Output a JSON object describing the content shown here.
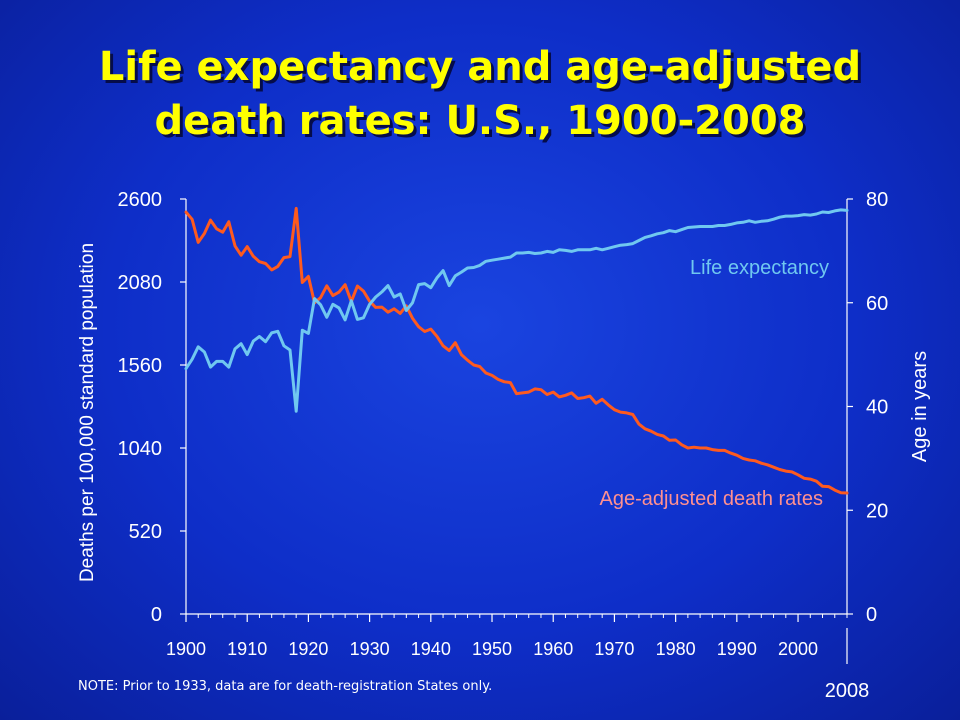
{
  "title": {
    "line1": "Life expectancy and age-adjusted",
    "line2": "death rates: U.S., 1900-2008"
  },
  "note": "NOTE: Prior to 1933, data are for death-registration States only.",
  "colors": {
    "background": "#1030d0",
    "title": "#ffff00",
    "death_rate_line": "#ff5a1e",
    "life_expectancy_line": "#70c8f0",
    "death_rate_label": "#ff9090",
    "life_expectancy_label": "#70c8f0",
    "axis": "#ffffff"
  },
  "chart_data": {
    "type": "line",
    "xlabel": "",
    "ylabel_left": "Deaths per 100,000 standard  population",
    "ylabel_right": "Age in years",
    "xlim": [
      1900,
      2008
    ],
    "ylim_left": [
      0,
      2600
    ],
    "ylim_right": [
      0,
      80
    ],
    "x_ticks": [
      "1900",
      "1910",
      "1920",
      "1930",
      "1940",
      "1950",
      "1960",
      "1970",
      "1980",
      "1990",
      "2000"
    ],
    "x_extra_label": "2008",
    "y_ticks_left": [
      "0",
      "520",
      "1040",
      "1560",
      "2080",
      "2600"
    ],
    "y_ticks_right": [
      "0",
      "20",
      "40",
      "60",
      "80"
    ],
    "grid": false,
    "series": [
      {
        "name": "Age-adjusted death rates",
        "axis": "left",
        "x": [
          1900,
          1901,
          1902,
          1903,
          1904,
          1905,
          1906,
          1907,
          1908,
          1909,
          1910,
          1911,
          1912,
          1913,
          1914,
          1915,
          1916,
          1917,
          1918,
          1919,
          1920,
          1921,
          1922,
          1923,
          1924,
          1925,
          1926,
          1927,
          1928,
          1929,
          1930,
          1931,
          1932,
          1933,
          1934,
          1935,
          1936,
          1937,
          1938,
          1939,
          1940,
          1941,
          1942,
          1943,
          1944,
          1945,
          1946,
          1947,
          1948,
          1949,
          1950,
          1951,
          1952,
          1953,
          1954,
          1955,
          1956,
          1957,
          1958,
          1959,
          1960,
          1961,
          1962,
          1963,
          1964,
          1965,
          1966,
          1967,
          1968,
          1969,
          1970,
          1971,
          1972,
          1973,
          1974,
          1975,
          1976,
          1977,
          1978,
          1979,
          1980,
          1981,
          1982,
          1983,
          1984,
          1985,
          1986,
          1987,
          1988,
          1989,
          1990,
          1991,
          1992,
          1993,
          1994,
          1995,
          1996,
          1997,
          1998,
          1999,
          2000,
          2001,
          2002,
          2003,
          2004,
          2005,
          2006,
          2007,
          2008
        ],
        "values": [
          2518,
          2473,
          2328,
          2384,
          2468,
          2413,
          2392,
          2458,
          2306,
          2248,
          2302,
          2241,
          2207,
          2196,
          2156,
          2178,
          2233,
          2239,
          2541,
          2077,
          2115,
          1950,
          1982,
          2056,
          1995,
          2017,
          2063,
          1957,
          2055,
          2023,
          1960,
          1921,
          1923,
          1891,
          1912,
          1883,
          1930,
          1853,
          1800,
          1770,
          1785,
          1740,
          1680,
          1650,
          1700,
          1625,
          1590,
          1560,
          1550,
          1510,
          1495,
          1470,
          1455,
          1450,
          1380,
          1385,
          1390,
          1410,
          1405,
          1375,
          1390,
          1360,
          1370,
          1385,
          1350,
          1355,
          1365,
          1320,
          1345,
          1310,
          1280,
          1265,
          1260,
          1250,
          1190,
          1160,
          1145,
          1125,
          1115,
          1088,
          1090,
          1060,
          1040,
          1045,
          1040,
          1040,
          1030,
          1025,
          1025,
          1008,
          995,
          975,
          965,
          960,
          945,
          935,
          920,
          905,
          895,
          890,
          872,
          850,
          845,
          832,
          800,
          798,
          776,
          760,
          758
        ]
      },
      {
        "name": "Life expectancy",
        "axis": "right",
        "x": [
          1900,
          1901,
          1902,
          1903,
          1904,
          1905,
          1906,
          1907,
          1908,
          1909,
          1910,
          1911,
          1912,
          1913,
          1914,
          1915,
          1916,
          1917,
          1918,
          1919,
          1920,
          1921,
          1922,
          1923,
          1924,
          1925,
          1926,
          1927,
          1928,
          1929,
          1930,
          1931,
          1932,
          1933,
          1934,
          1935,
          1936,
          1937,
          1938,
          1939,
          1940,
          1941,
          1942,
          1943,
          1944,
          1945,
          1946,
          1947,
          1948,
          1949,
          1950,
          1951,
          1952,
          1953,
          1954,
          1955,
          1956,
          1957,
          1958,
          1959,
          1960,
          1961,
          1962,
          1963,
          1964,
          1965,
          1966,
          1967,
          1968,
          1969,
          1970,
          1971,
          1972,
          1973,
          1974,
          1975,
          1976,
          1977,
          1978,
          1979,
          1980,
          1981,
          1982,
          1983,
          1984,
          1985,
          1986,
          1987,
          1988,
          1989,
          1990,
          1991,
          1992,
          1993,
          1994,
          1995,
          1996,
          1997,
          1998,
          1999,
          2000,
          2001,
          2002,
          2003,
          2004,
          2005,
          2006,
          2007,
          2008
        ],
        "values": [
          47.3,
          49.1,
          51.5,
          50.5,
          47.6,
          48.7,
          48.7,
          47.6,
          51.1,
          52.1,
          50.0,
          52.6,
          53.5,
          52.5,
          54.2,
          54.5,
          51.7,
          50.9,
          39.1,
          54.7,
          54.1,
          60.8,
          59.6,
          57.2,
          59.7,
          59.0,
          56.7,
          60.4,
          56.8,
          57.1,
          59.7,
          61.1,
          62.1,
          63.3,
          61.1,
          61.7,
          58.5,
          60.0,
          63.5,
          63.7,
          62.9,
          64.8,
          66.2,
          63.3,
          65.2,
          65.9,
          66.7,
          66.8,
          67.2,
          68.0,
          68.2,
          68.4,
          68.6,
          68.8,
          69.6,
          69.6,
          69.7,
          69.5,
          69.6,
          69.9,
          69.7,
          70.2,
          70.1,
          69.9,
          70.2,
          70.2,
          70.2,
          70.5,
          70.2,
          70.5,
          70.8,
          71.1,
          71.2,
          71.4,
          72.0,
          72.6,
          72.9,
          73.3,
          73.5,
          73.9,
          73.7,
          74.1,
          74.5,
          74.6,
          74.7,
          74.7,
          74.7,
          74.9,
          74.9,
          75.1,
          75.4,
          75.5,
          75.8,
          75.5,
          75.7,
          75.8,
          76.1,
          76.5,
          76.7,
          76.7,
          76.8,
          77.0,
          76.9,
          77.1,
          77.5,
          77.4,
          77.7,
          77.9,
          77.8
        ]
      }
    ]
  }
}
